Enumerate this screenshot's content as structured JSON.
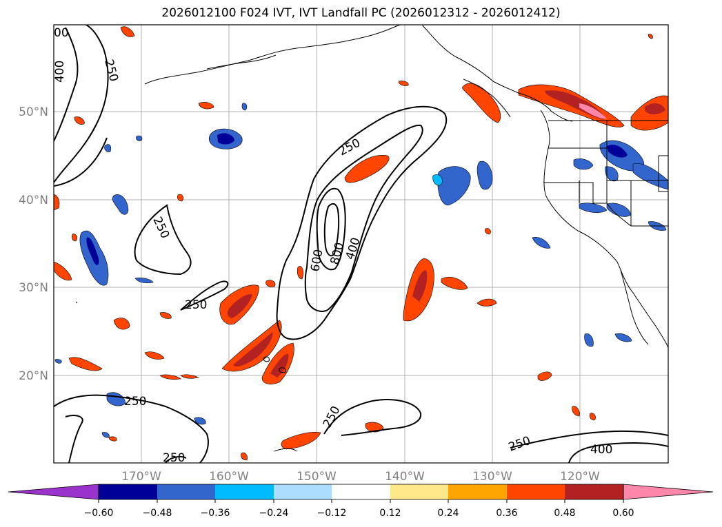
{
  "title": "2026012100 F024 IVT, IVT Landfall PC (2026012312 - 2026012412)",
  "map": {
    "lon_labels": [
      "170°W",
      "160°W",
      "150°W",
      "140°W",
      "130°W",
      "120°W"
    ],
    "lat_labels": [
      "50°N",
      "40°N",
      "30°N",
      "20°N"
    ],
    "contour_labels": [
      "00",
      "400",
      "250",
      "250",
      "250",
      "600",
      "800",
      "400",
      "250",
      "250",
      "250",
      "250",
      "250",
      "400"
    ]
  },
  "colorbar": {
    "ticks": [
      "−0.60",
      "−0.48",
      "−0.36",
      "−0.24",
      "−0.12",
      "0.12",
      "0.24",
      "0.36",
      "0.48",
      "0.60"
    ],
    "colors": [
      "#9933cc",
      "#000099",
      "#3366cc",
      "#00bbff",
      "#aaddff",
      "#ffffff",
      "#ffe88a",
      "#ffa500",
      "#ff4500",
      "#b22222",
      "#ff88aa"
    ]
  }
}
